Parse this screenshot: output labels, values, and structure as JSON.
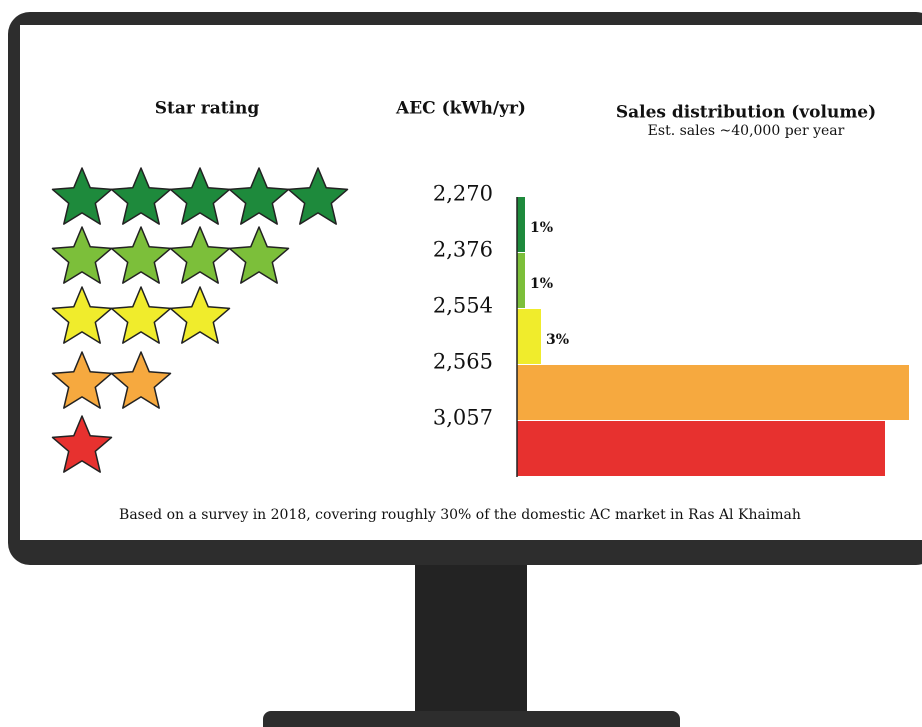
{
  "chart_data": {
    "type": "bar",
    "headers": [
      "Star rating",
      "AEC (kWh/yr)",
      "Sales distribution (volume)"
    ],
    "subtitle": "Est. sales ~40,000  per year",
    "stars": [
      5,
      4,
      3,
      2,
      1
    ],
    "categories": [
      "2,270",
      "2,376",
      "2,554",
      "2,565",
      "3,057"
    ],
    "values": [
      1,
      1,
      3,
      49,
      46
    ],
    "value_labels": [
      "1%",
      "1%",
      "3%",
      null,
      null
    ],
    "colors": [
      "#1e8a3c",
      "#7cbf3a",
      "#f0ec2c",
      "#f6a93f",
      "#e7312f"
    ],
    "xlim": [
      0,
      50
    ],
    "note": "Based on a survey in 2018, covering roughly 30% of the domestic AC market in Ras Al Khaimah"
  }
}
